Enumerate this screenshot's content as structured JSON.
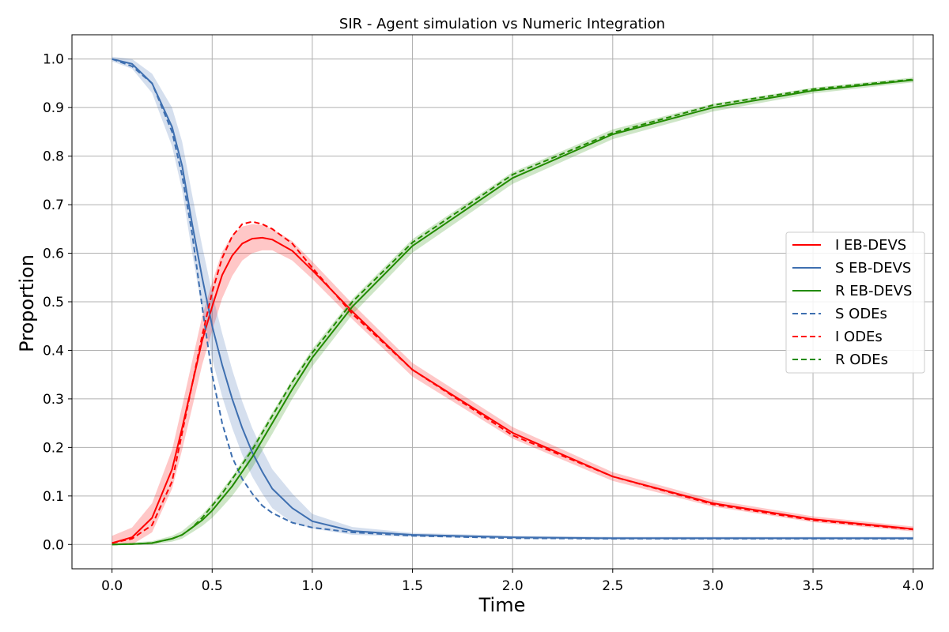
{
  "chart_data": {
    "type": "line",
    "title": "SIR - Agent simulation vs Numeric Integration",
    "xlabel": "Time",
    "ylabel": "Proportion",
    "xlim": [
      -0.2,
      4.1
    ],
    "ylim": [
      -0.05,
      1.05
    ],
    "xticks": [
      "0.0",
      "0.5",
      "1.0",
      "1.5",
      "2.0",
      "2.5",
      "3.0",
      "3.5",
      "4.0"
    ],
    "yticks": [
      "0.0",
      "0.1",
      "0.2",
      "0.3",
      "0.4",
      "0.5",
      "0.6",
      "0.7",
      "0.8",
      "0.9",
      "1.0"
    ],
    "grid": true,
    "legend_position": "center-right",
    "colors": {
      "S": "#3e6fb0",
      "I": "#ff0000",
      "R": "#228b00"
    },
    "x": [
      0.0,
      0.1,
      0.2,
      0.3,
      0.35,
      0.4,
      0.45,
      0.5,
      0.55,
      0.6,
      0.65,
      0.7,
      0.75,
      0.8,
      0.9,
      1.0,
      1.2,
      1.5,
      2.0,
      2.5,
      3.0,
      3.5,
      4.0
    ],
    "series": [
      {
        "name": "I EB-DEVS",
        "style": "solid",
        "key": "I",
        "values": [
          0.003,
          0.015,
          0.055,
          0.155,
          0.24,
          0.33,
          0.42,
          0.49,
          0.555,
          0.595,
          0.62,
          0.63,
          0.632,
          0.628,
          0.605,
          0.565,
          0.48,
          0.36,
          0.23,
          0.14,
          0.085,
          0.052,
          0.032
        ],
        "band": [
          0.015,
          0.02,
          0.03,
          0.04,
          0.045,
          0.048,
          0.05,
          0.05,
          0.048,
          0.042,
          0.035,
          0.03,
          0.026,
          0.022,
          0.02,
          0.018,
          0.016,
          0.014,
          0.012,
          0.009,
          0.007,
          0.006,
          0.005
        ]
      },
      {
        "name": "S EB-DEVS",
        "style": "solid",
        "key": "S",
        "values": [
          1.0,
          0.99,
          0.95,
          0.86,
          0.78,
          0.66,
          0.55,
          0.45,
          0.37,
          0.3,
          0.24,
          0.19,
          0.15,
          0.115,
          0.075,
          0.048,
          0.028,
          0.02,
          0.015,
          0.013,
          0.013,
          0.013,
          0.013
        ],
        "band": [
          0.005,
          0.01,
          0.02,
          0.04,
          0.05,
          0.06,
          0.065,
          0.068,
          0.065,
          0.06,
          0.055,
          0.05,
          0.045,
          0.04,
          0.03,
          0.015,
          0.008,
          0.004,
          0.003,
          0.003,
          0.003,
          0.003,
          0.003
        ]
      },
      {
        "name": "R EB-DEVS",
        "style": "solid",
        "key": "R",
        "values": [
          0.0,
          0.001,
          0.003,
          0.012,
          0.02,
          0.035,
          0.05,
          0.07,
          0.095,
          0.12,
          0.15,
          0.18,
          0.215,
          0.25,
          0.32,
          0.385,
          0.49,
          0.615,
          0.755,
          0.845,
          0.9,
          0.935,
          0.957
        ],
        "band": [
          0.002,
          0.003,
          0.004,
          0.006,
          0.008,
          0.01,
          0.012,
          0.015,
          0.018,
          0.02,
          0.022,
          0.022,
          0.022,
          0.022,
          0.02,
          0.018,
          0.016,
          0.014,
          0.012,
          0.01,
          0.008,
          0.006,
          0.005
        ]
      },
      {
        "name": "S ODEs",
        "style": "dashed",
        "key": "S",
        "values": [
          1.0,
          0.985,
          0.95,
          0.85,
          0.76,
          0.64,
          0.49,
          0.35,
          0.25,
          0.18,
          0.135,
          0.105,
          0.08,
          0.065,
          0.045,
          0.035,
          0.025,
          0.018,
          0.013,
          0.012,
          0.012,
          0.012,
          0.012
        ]
      },
      {
        "name": "I ODEs",
        "style": "dashed",
        "key": "I",
        "values": [
          0.003,
          0.012,
          0.04,
          0.13,
          0.23,
          0.33,
          0.43,
          0.52,
          0.59,
          0.635,
          0.66,
          0.665,
          0.66,
          0.65,
          0.62,
          0.57,
          0.475,
          0.36,
          0.225,
          0.14,
          0.083,
          0.05,
          0.031
        ]
      },
      {
        "name": "R ODEs",
        "style": "dashed",
        "key": "R",
        "values": [
          0.0,
          0.001,
          0.003,
          0.012,
          0.02,
          0.035,
          0.055,
          0.08,
          0.105,
          0.135,
          0.165,
          0.195,
          0.23,
          0.265,
          0.335,
          0.395,
          0.5,
          0.622,
          0.762,
          0.848,
          0.905,
          0.938,
          0.958
        ]
      }
    ]
  }
}
